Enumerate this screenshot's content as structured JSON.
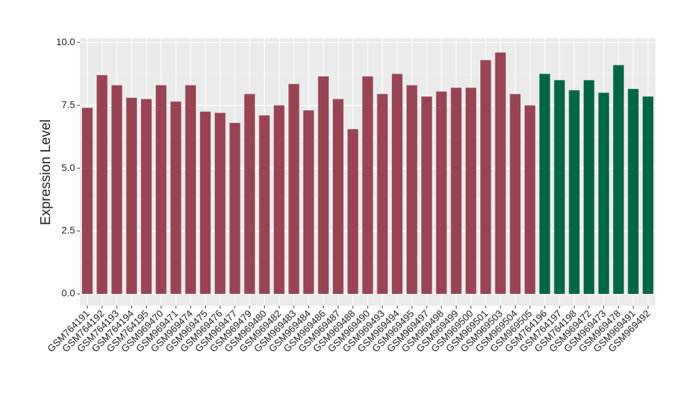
{
  "chart_data": {
    "type": "bar",
    "y_label": "Expression Level",
    "categories": [
      "GSM764191",
      "GSM764192",
      "GSM764193",
      "GSM764194",
      "GSM764195",
      "GSM969470",
      "GSM969471",
      "GSM969474",
      "GSM969475",
      "GSM969476",
      "GSM969477",
      "GSM969479",
      "GSM969480",
      "GSM969482",
      "GSM969483",
      "GSM969484",
      "GSM969486",
      "GSM969487",
      "GSM969488",
      "GSM969490",
      "GSM969493",
      "GSM969494",
      "GSM969495",
      "GSM969497",
      "GSM969498",
      "GSM969499",
      "GSM969500",
      "GSM969501",
      "GSM969503",
      "GSM969504",
      "GSM969505",
      "GSM764196",
      "GSM764197",
      "GSM764198",
      "GSM969472",
      "GSM969473",
      "GSM969478",
      "GSM969491",
      "GSM969492"
    ],
    "values": [
      7.4,
      8.7,
      8.3,
      7.8,
      7.75,
      8.3,
      7.65,
      8.3,
      7.25,
      7.2,
      6.8,
      7.95,
      7.1,
      7.5,
      8.35,
      7.3,
      8.65,
      7.75,
      6.55,
      8.65,
      7.95,
      8.75,
      8.3,
      7.85,
      8.05,
      8.2,
      8.2,
      9.3,
      9.6,
      7.95,
      7.5,
      8.75,
      8.5,
      8.1,
      8.5,
      8.0,
      9.1,
      8.15,
      7.85
    ],
    "colors": [
      "#994455",
      "#994455",
      "#994455",
      "#994455",
      "#994455",
      "#994455",
      "#994455",
      "#994455",
      "#994455",
      "#994455",
      "#994455",
      "#994455",
      "#994455",
      "#994455",
      "#994455",
      "#994455",
      "#994455",
      "#994455",
      "#994455",
      "#994455",
      "#994455",
      "#994455",
      "#994455",
      "#994455",
      "#994455",
      "#994455",
      "#994455",
      "#994455",
      "#994455",
      "#994455",
      "#994455",
      "#006644",
      "#006644",
      "#006644",
      "#006644",
      "#006644",
      "#006644",
      "#006644",
      "#006644"
    ],
    "ylim": [
      -0.47,
      10.17
    ],
    "yticks": [
      {
        "value": 0,
        "label": "0.0"
      },
      {
        "value": 2.5,
        "label": "2.5"
      },
      {
        "value": 5,
        "label": "5.0"
      },
      {
        "value": 7.5,
        "label": "7.5"
      },
      {
        "value": 10,
        "label": "10.0"
      }
    ],
    "grid": true
  }
}
